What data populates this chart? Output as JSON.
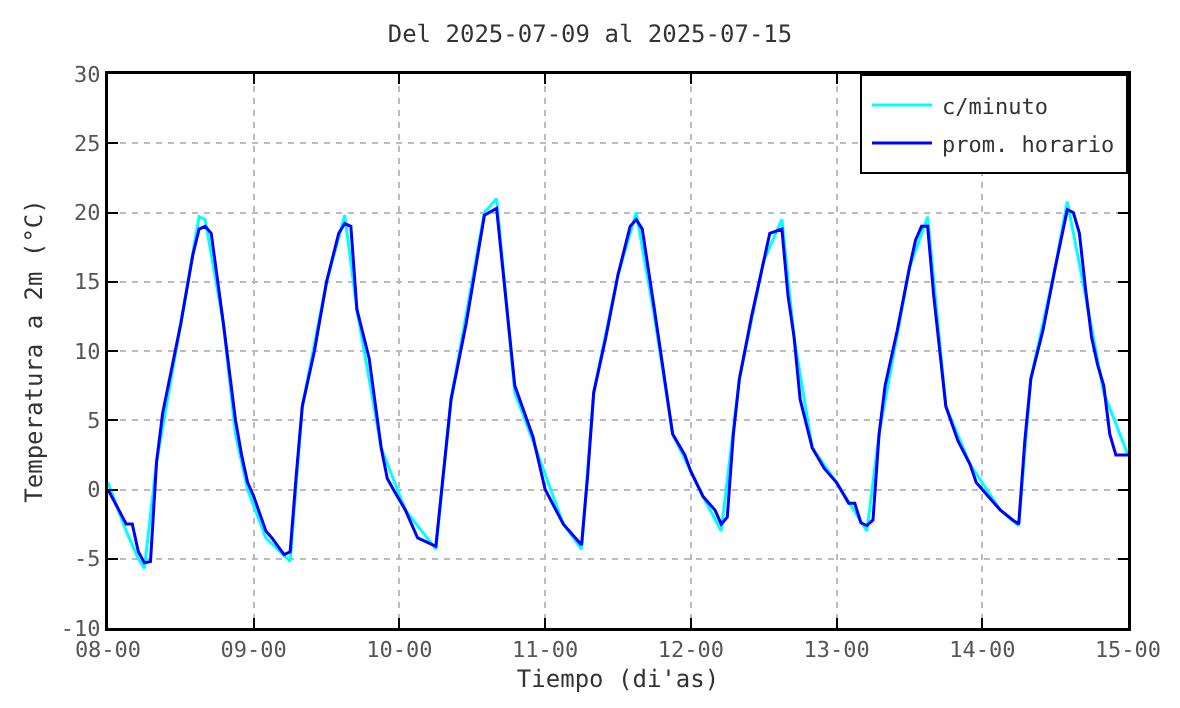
{
  "chart_data": {
    "type": "line",
    "title": "Del 2025-07-09 al 2025-07-15",
    "xlabel": "Tiempo (di'as)",
    "ylabel": "Temperatura a 2m (°C)",
    "xlim": [
      "2025-07-08T00:00",
      "2025-07-15T00:00"
    ],
    "xticks": [
      {
        "value": "2025-07-08T00:00",
        "label": "08-00"
      },
      {
        "value": "2025-07-09T00:00",
        "label": "09-00"
      },
      {
        "value": "2025-07-10T00:00",
        "label": "10-00"
      },
      {
        "value": "2025-07-11T00:00",
        "label": "11-00"
      },
      {
        "value": "2025-07-12T00:00",
        "label": "12-00"
      },
      {
        "value": "2025-07-13T00:00",
        "label": "13-00"
      },
      {
        "value": "2025-07-14T00:00",
        "label": "14-00"
      },
      {
        "value": "2025-07-15T00:00",
        "label": "15-00"
      }
    ],
    "ylim": [
      -10,
      30
    ],
    "yticks": [
      -10,
      -5,
      0,
      5,
      10,
      15,
      20,
      25,
      30
    ],
    "grid": true,
    "legend": "top right",
    "line_style": "solid",
    "marker": "none",
    "series": [
      {
        "name": "c/minuto",
        "color": "#00ffff",
        "x": [
          "2025-07-08T00:00",
          "2025-07-08T03:00",
          "2025-07-08T05:00",
          "2025-07-08T06:00",
          "2025-07-08T08:00",
          "2025-07-08T12:00",
          "2025-07-08T15:00",
          "2025-07-08T16:00",
          "2025-07-08T19:00",
          "2025-07-08T21:00",
          "2025-07-08T23:00",
          "2025-07-09T02:00",
          "2025-07-09T06:00",
          "2025-07-09T08:00",
          "2025-07-09T12:00",
          "2025-07-09T15:00",
          "2025-07-09T17:00",
          "2025-07-09T21:00",
          "2025-07-10T01:00",
          "2025-07-10T06:00",
          "2025-07-10T08:30",
          "2025-07-10T14:00",
          "2025-07-10T16:00",
          "2025-07-10T19:00",
          "2025-07-10T22:00",
          "2025-07-11T03:00",
          "2025-07-11T06:00",
          "2025-07-11T08:00",
          "2025-07-11T12:00",
          "2025-07-11T15:00",
          "2025-07-11T18:00",
          "2025-07-11T21:00",
          "2025-07-12T02:00",
          "2025-07-12T05:00",
          "2025-07-12T08:00",
          "2025-07-12T12:00",
          "2025-07-12T15:00",
          "2025-07-12T17:00",
          "2025-07-12T20:00",
          "2025-07-13T00:00",
          "2025-07-13T05:00",
          "2025-07-13T07:00",
          "2025-07-13T12:00",
          "2025-07-13T15:00",
          "2025-07-13T18:00",
          "2025-07-13T22:00",
          "2025-07-14T03:00",
          "2025-07-14T06:00",
          "2025-07-14T08:00",
          "2025-07-14T12:00",
          "2025-07-14T14:00",
          "2025-07-14T17:00",
          "2025-07-14T20:00",
          "2025-07-15T00:00"
        ],
        "values": [
          0.5,
          -3,
          -5,
          -5.7,
          2,
          12,
          19.7,
          19.5,
          12,
          4,
          0,
          -3.5,
          -5.2,
          6,
          15,
          19.8,
          13,
          3,
          -1.5,
          -4.3,
          6.5,
          20,
          21,
          7,
          3.5,
          -2.5,
          -4.3,
          7,
          15.5,
          20,
          12.5,
          4,
          -0.5,
          -3,
          8,
          16.5,
          19.5,
          11,
          3,
          0.5,
          -3,
          4,
          16,
          19.7,
          6,
          1.8,
          -1.5,
          -2.6,
          8,
          16,
          20.8,
          14,
          7,
          2.5
        ]
      },
      {
        "name": "prom. horario",
        "color": "#0000ff",
        "x": [
          "2025-07-08T00:00",
          "2025-07-08T03:00",
          "2025-07-08T04:00",
          "2025-07-08T05:00",
          "2025-07-08T06:00",
          "2025-07-08T07:00",
          "2025-07-08T08:00",
          "2025-07-08T09:00",
          "2025-07-08T12:00",
          "2025-07-08T14:00",
          "2025-07-08T15:00",
          "2025-07-08T16:00",
          "2025-07-08T17:00",
          "2025-07-08T19:00",
          "2025-07-08T21:00",
          "2025-07-08T22:00",
          "2025-07-08T23:00",
          "2025-07-09T00:00",
          "2025-07-09T02:00",
          "2025-07-09T03:00",
          "2025-07-09T05:00",
          "2025-07-09T06:00",
          "2025-07-09T07:00",
          "2025-07-09T08:00",
          "2025-07-09T10:00",
          "2025-07-09T12:00",
          "2025-07-09T14:00",
          "2025-07-09T15:00",
          "2025-07-09T16:00",
          "2025-07-09T17:00",
          "2025-07-09T19:00",
          "2025-07-09T21:00",
          "2025-07-09T22:00",
          "2025-07-09T23:00",
          "2025-07-10T01:00",
          "2025-07-10T03:00",
          "2025-07-10T06:00",
          "2025-07-10T08:30",
          "2025-07-10T11:00",
          "2025-07-10T14:00",
          "2025-07-10T16:00",
          "2025-07-10T19:00",
          "2025-07-10T22:00",
          "2025-07-11T00:00",
          "2025-07-11T03:00",
          "2025-07-11T06:00",
          "2025-07-11T07:00",
          "2025-07-11T08:00",
          "2025-07-11T10:00",
          "2025-07-11T12:00",
          "2025-07-11T14:00",
          "2025-07-11T15:00",
          "2025-07-11T16:00",
          "2025-07-11T18:00",
          "2025-07-11T19:00",
          "2025-07-11T21:00",
          "2025-07-11T23:00",
          "2025-07-12T00:00",
          "2025-07-12T02:00",
          "2025-07-12T04:00",
          "2025-07-12T05:00",
          "2025-07-12T06:00",
          "2025-07-12T07:00",
          "2025-07-12T08:00",
          "2025-07-12T10:00",
          "2025-07-12T12:00",
          "2025-07-12T13:00",
          "2025-07-12T15:00",
          "2025-07-12T16:00",
          "2025-07-12T17:00",
          "2025-07-12T18:00",
          "2025-07-12T20:00",
          "2025-07-12T22:00",
          "2025-07-13T00:00",
          "2025-07-13T02:00",
          "2025-07-13T03:00",
          "2025-07-13T04:00",
          "2025-07-13T05:00",
          "2025-07-13T06:00",
          "2025-07-13T07:00",
          "2025-07-13T08:00",
          "2025-07-13T10:00",
          "2025-07-13T12:00",
          "2025-07-13T13:00",
          "2025-07-13T14:00",
          "2025-07-13T15:00",
          "2025-07-13T16:00",
          "2025-07-13T18:00",
          "2025-07-13T20:00",
          "2025-07-13T22:00",
          "2025-07-13T23:00",
          "2025-07-14T01:00",
          "2025-07-14T03:00",
          "2025-07-14T05:00",
          "2025-07-14T06:00",
          "2025-07-14T07:00",
          "2025-07-14T08:00",
          "2025-07-14T10:00",
          "2025-07-14T12:00",
          "2025-07-14T14:00",
          "2025-07-14T15:00",
          "2025-07-14T16:00",
          "2025-07-14T17:00",
          "2025-07-14T18:00",
          "2025-07-14T19:00",
          "2025-07-14T20:00",
          "2025-07-14T21:00",
          "2025-07-14T22:00",
          "2025-07-15T00:00"
        ],
        "values": [
          0,
          -2.5,
          -2.5,
          -4.5,
          -5.3,
          -5.2,
          2,
          5.5,
          12,
          17,
          18.8,
          19,
          18.5,
          12,
          5,
          2.5,
          0.5,
          -0.5,
          -3,
          -3.5,
          -4.7,
          -4.5,
          1,
          6,
          10,
          15,
          18.5,
          19.2,
          19,
          13,
          9.5,
          3,
          0.8,
          0,
          -1.5,
          -3.5,
          -4.1,
          6.5,
          12,
          19.8,
          20.3,
          7.5,
          3.8,
          0,
          -2.5,
          -4,
          1,
          7,
          11,
          15.5,
          19,
          19.5,
          18.8,
          13,
          10,
          4,
          2.5,
          1.3,
          -0.5,
          -1.5,
          -2.5,
          -2,
          4,
          8,
          12.5,
          16.5,
          18.5,
          18.8,
          14,
          11,
          6.5,
          3,
          1.5,
          0.5,
          -1,
          -1,
          -2.4,
          -2.6,
          -2.2,
          4,
          7.5,
          11.5,
          16,
          18,
          19,
          19,
          14,
          6,
          3.5,
          1.8,
          0.5,
          -0.5,
          -1.5,
          -2.2,
          -2.5,
          3.5,
          8,
          11.5,
          16,
          20.2,
          20,
          18.5,
          14.5,
          11,
          9,
          7.5,
          4,
          2.5,
          2.5
        ]
      }
    ]
  }
}
